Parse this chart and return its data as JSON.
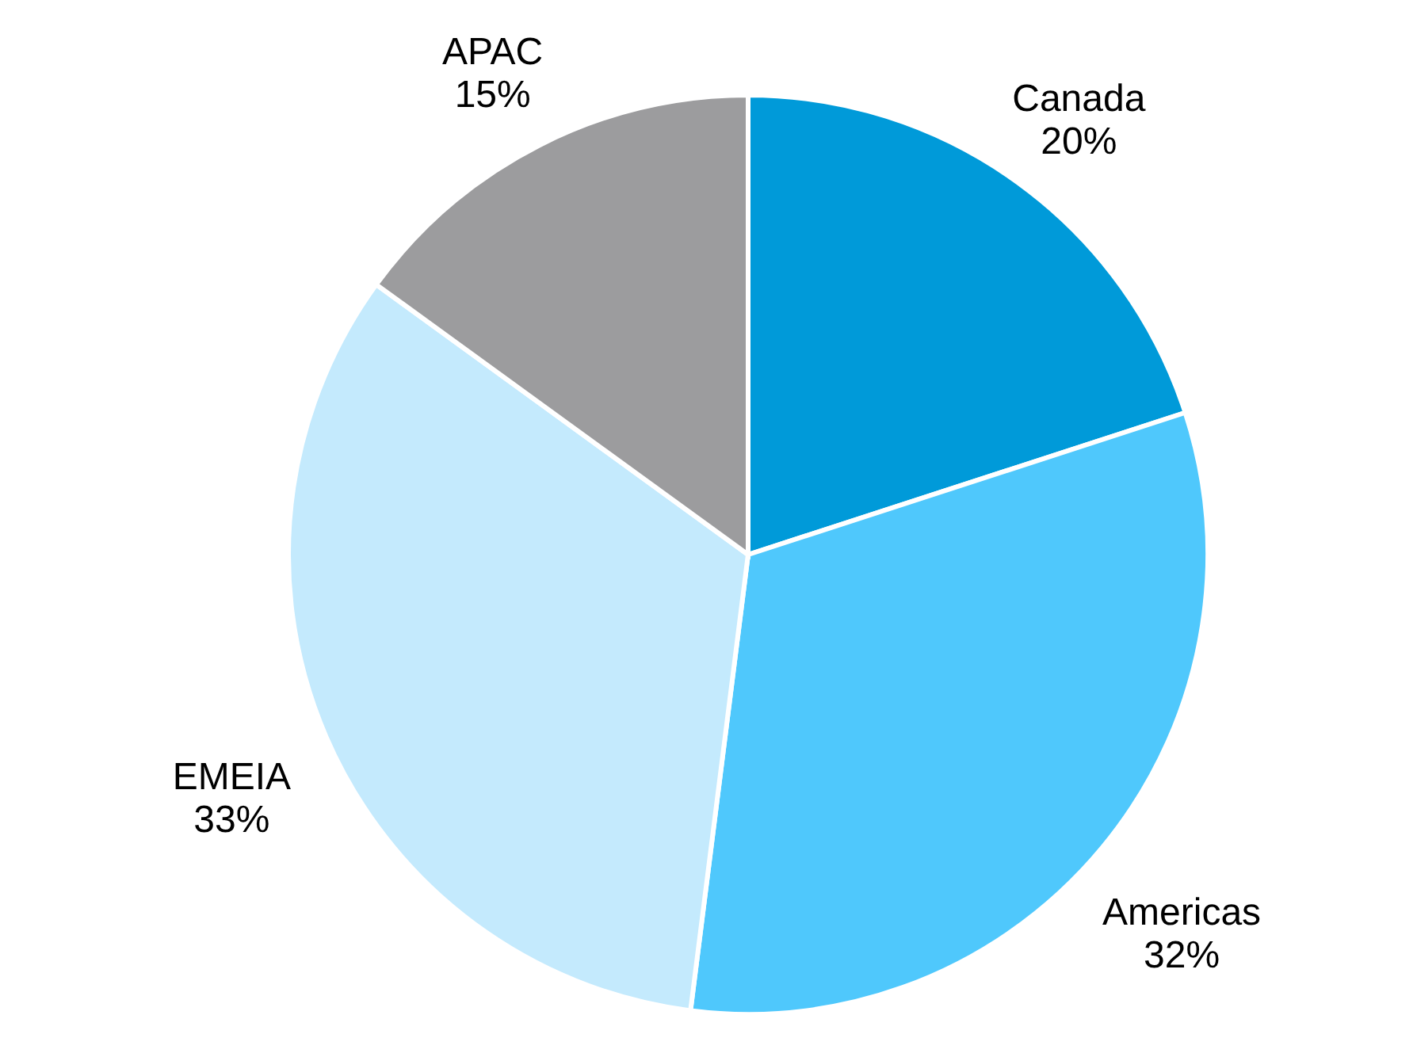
{
  "chart_data": {
    "type": "pie",
    "categories": [
      "Canada",
      "Americas",
      "EMEIA",
      "APAC"
    ],
    "values": [
      20,
      32,
      33,
      15
    ],
    "value_labels": [
      "20%",
      "32%",
      "33%",
      "15%"
    ],
    "colors": [
      "#009ad9",
      "#4fc8fc",
      "#c4eafd",
      "#9c9c9e"
    ]
  }
}
